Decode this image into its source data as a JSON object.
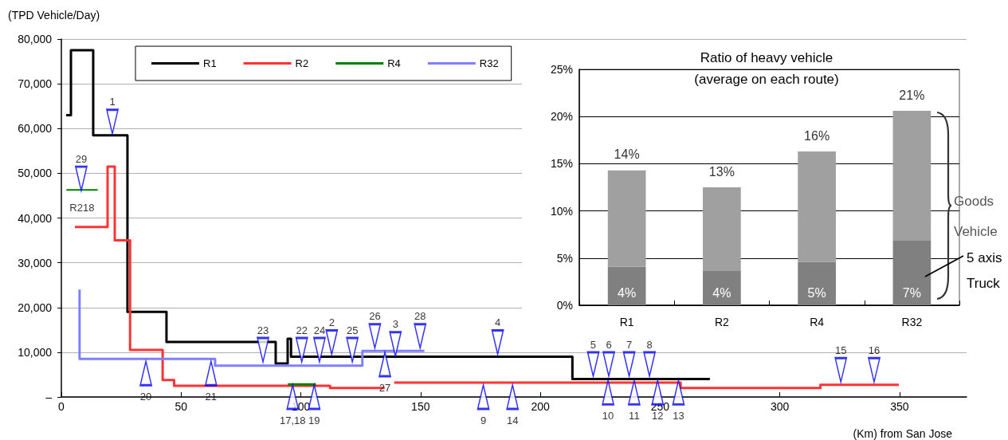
{
  "chart_data": [
    {
      "type": "step",
      "ylabel": "(TPD Vehicle/Day)",
      "xlabel": "(Km) from San Jose",
      "xlim": [
        0,
        378
      ],
      "xticks": [
        0,
        50,
        100,
        150,
        200,
        250,
        300,
        350
      ],
      "ylim": [
        0,
        80000
      ],
      "yticks": [
        {
          "value": 0,
          "label": "–"
        },
        {
          "value": 10000,
          "label": "10,000"
        },
        {
          "value": 20000,
          "label": "20,000"
        },
        {
          "value": 30000,
          "label": "30,000"
        },
        {
          "value": 40000,
          "label": "40,000"
        },
        {
          "value": 50000,
          "label": "50,000"
        },
        {
          "value": 60000,
          "label": "60,000"
        },
        {
          "value": 70000,
          "label": "70,000"
        },
        {
          "value": 80000,
          "label": "80,000"
        }
      ],
      "grid": "y",
      "legend": "top left",
      "annotations": [
        {
          "text": "R218",
          "x": 8.6,
          "y": 46300
        },
        {
          "text": "1",
          "x": 21.3,
          "y": 61500
        },
        {
          "text": "29",
          "x": 8.3,
          "y": 48800
        },
        {
          "text": "23",
          "x": 84.2,
          "y": 10500
        },
        {
          "text": "22",
          "x": 100.4,
          "y": 10500
        },
        {
          "text": "24",
          "x": 107.8,
          "y": 10500
        },
        {
          "text": "2",
          "x": 112.9,
          "y": 12200
        },
        {
          "text": "25",
          "x": 121.5,
          "y": 10500
        },
        {
          "text": "26",
          "x": 130.9,
          "y": 13600
        },
        {
          "text": "3",
          "x": 139.5,
          "y": 11800
        },
        {
          "text": "28",
          "x": 149.8,
          "y": 13600
        },
        {
          "text": "4",
          "x": 182.2,
          "y": 12200
        },
        {
          "text": "5",
          "x": 222.1,
          "y": 7300
        },
        {
          "text": "6",
          "x": 228.6,
          "y": 7300
        },
        {
          "text": "7",
          "x": 237.1,
          "y": 7300
        },
        {
          "text": "8",
          "x": 245.6,
          "y": 7300
        },
        {
          "text": "15",
          "x": 325.5,
          "y": 6000
        },
        {
          "text": "16",
          "x": 339.4,
          "y": 6000
        },
        {
          "text": "20",
          "x": 35.3,
          "y": 5300
        },
        {
          "text": "21",
          "x": 62.5,
          "y": 5300
        },
        {
          "text": "27",
          "x": 135.1,
          "y": 7300
        },
        {
          "text": "17,18",
          "x": 96.6,
          "y": 0
        },
        {
          "text": "19",
          "x": 105.6,
          "y": 0
        },
        {
          "text": "9",
          "x": 176.2,
          "y": 0
        },
        {
          "text": "14",
          "x": 188.4,
          "y": 0
        },
        {
          "text": "10",
          "x": 228.3,
          "y": 1000
        },
        {
          "text": "11",
          "x": 239.2,
          "y": 1000
        },
        {
          "text": "12",
          "x": 249,
          "y": 1000
        },
        {
          "text": "13",
          "x": 257.7,
          "y": 1000
        }
      ],
      "series": [
        {
          "name": "R1",
          "color": "#000000",
          "x": [
            2,
            4,
            13.3,
            27.6,
            43.9,
            89.5,
            94.5,
            95.9,
            213.4,
            270.8
          ],
          "values": [
            63000,
            77500,
            58500,
            19000,
            12300,
            7500,
            13000,
            9000,
            4000,
            4000
          ]
        },
        {
          "name": "R2",
          "color": "#ff3333",
          "x": [
            5.7,
            19.3,
            22.3,
            28.7,
            42.3,
            47.1,
            112.2,
            131,
            135,
            139,
            258.6,
            317,
            349.7
          ],
          "values": [
            38000,
            51500,
            35000,
            10500,
            3800,
            2500,
            2000,
            2000,
            null,
            3200,
            2000,
            2700,
            2700
          ]
        },
        {
          "name": "R4",
          "color": "#008000",
          "x": [
            94.6,
            106.3
          ],
          "values": [
            2800,
            2800
          ]
        },
        {
          "name": "R32",
          "color": "#8080ff",
          "x": [
            7.6,
            7.6,
            64.2,
            125.7,
            151.6
          ],
          "values": [
            24000,
            8500,
            7000,
            10300,
            10300
          ]
        },
        {
          "color": "#008000",
          "x": [
            2.1,
            15.2
          ],
          "values": [
            46300,
            46300
          ]
        },
        {
          "type": "scatter",
          "marker": "triangle",
          "color": "#0000ff",
          "x": [
            21.3,
            8.3,
            84.2,
            100.4,
            107.8,
            112.9,
            121.5,
            130.9,
            139.5,
            149.8,
            182.2,
            222.1,
            228.6,
            237.1,
            245.6,
            325.5,
            339.4
          ],
          "values": [
            61500,
            48800,
            10500,
            10500,
            10500,
            12200,
            10500,
            13600,
            11800,
            13600,
            12200,
            7300,
            7300,
            7300,
            7300,
            6000,
            6000
          ]
        },
        {
          "type": "scatter",
          "marker": "triangle",
          "color": "#0000ff",
          "x": [
            35.3,
            62.5,
            135.1,
            96.6,
            105.6,
            176.2,
            188.4,
            228.3,
            239.2,
            249,
            257.7
          ],
          "values": [
            5300,
            5300,
            7300,
            0,
            0,
            0,
            0,
            1000,
            1000,
            1000,
            1000
          ]
        }
      ]
    },
    {
      "type": "bar",
      "stacked": true,
      "title": "Ratio of heavy vehicle",
      "subtitle": "(average on each route)",
      "categories": [
        "R1",
        "R2",
        "R4",
        "R32"
      ],
      "ylim": [
        0,
        25
      ],
      "yticks": [
        {
          "value": 0,
          "label": "0%"
        },
        {
          "value": 5,
          "label": "5%"
        },
        {
          "value": 10,
          "label": "10%"
        },
        {
          "value": 15,
          "label": "15%"
        },
        {
          "value": 20,
          "label": "20%"
        },
        {
          "value": 25,
          "label": "25%"
        }
      ],
      "grid": "y",
      "totals": [
        "14%",
        "13%",
        "16%",
        "21%"
      ],
      "series": [
        {
          "name": "5 axis Truck",
          "color": "#808080",
          "values": [
            4.1,
            3.7,
            4.6,
            6.9
          ],
          "value_labels": [
            "4%",
            "4%",
            "5%",
            "7%"
          ]
        },
        {
          "name": "Goods Vehicle",
          "color": "#a0a0a0",
          "values": [
            10.2,
            8.8,
            11.7,
            13.7
          ]
        }
      ]
    }
  ]
}
